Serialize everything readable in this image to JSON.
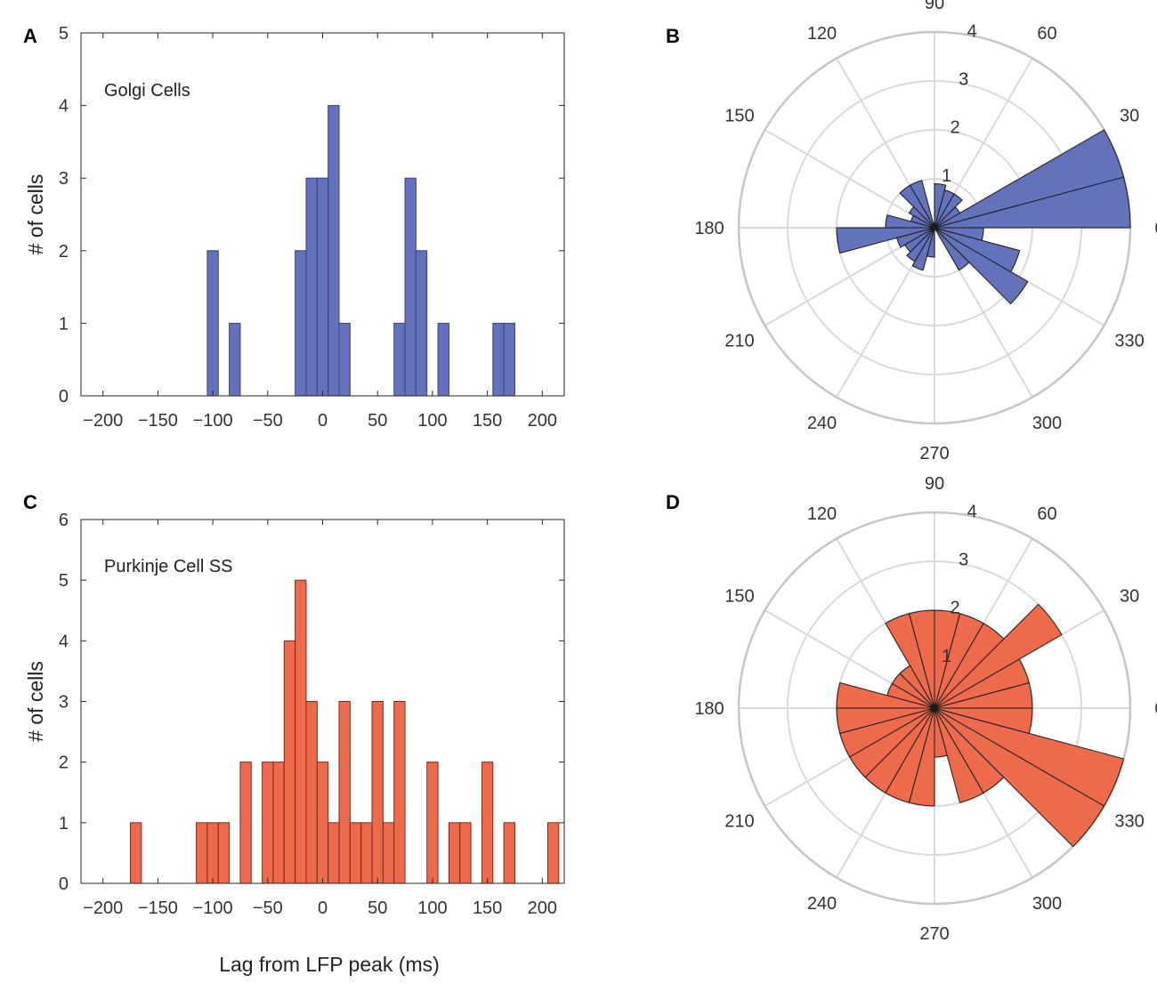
{
  "colors": {
    "blue": "#6472bb",
    "red": "#ee6a4d",
    "stroke_blue": "#3b417a",
    "stroke_red": "#7a2a1c",
    "polar_grid": "#d9d9d9"
  },
  "chart_data": [
    {
      "id": "A",
      "type": "bar",
      "panel_label": "A",
      "annotation": "Golgi Cells",
      "ylabel": "# of cells",
      "xlabel": "",
      "xlim": [
        -220,
        220
      ],
      "ylim": [
        0,
        5
      ],
      "xticks": [
        -200,
        -150,
        -100,
        -50,
        0,
        50,
        100,
        150,
        200
      ],
      "yticks": [
        0,
        1,
        2,
        3,
        4,
        5
      ],
      "bin_width": 10,
      "color": "#6472bb",
      "bin_centers": [
        -100,
        -80,
        -20,
        -10,
        0,
        10,
        20,
        70,
        80,
        90,
        110,
        160,
        170
      ],
      "values": [
        2,
        1,
        2,
        3,
        3,
        4,
        1,
        1,
        3,
        2,
        1,
        1,
        1
      ]
    },
    {
      "id": "C",
      "type": "bar",
      "panel_label": "C",
      "annotation": "Purkinje Cell SS",
      "ylabel": "# of cells",
      "xlabel": "Lag from LFP peak (ms)",
      "xlim": [
        -220,
        220
      ],
      "ylim": [
        0,
        6
      ],
      "xticks": [
        -200,
        -150,
        -100,
        -50,
        0,
        50,
        100,
        150,
        200
      ],
      "yticks": [
        0,
        1,
        2,
        3,
        4,
        5,
        6
      ],
      "bin_width": 10,
      "color": "#ee6a4d",
      "bin_centers": [
        -170,
        -110,
        -100,
        -90,
        -70,
        -50,
        -40,
        -30,
        -20,
        -10,
        0,
        10,
        20,
        30,
        40,
        50,
        60,
        70,
        100,
        120,
        130,
        150,
        170,
        210
      ],
      "values": [
        1,
        1,
        1,
        1,
        2,
        2,
        2,
        4,
        5,
        3,
        2,
        1,
        3,
        1,
        1,
        3,
        1,
        3,
        2,
        1,
        1,
        2,
        1,
        1
      ]
    },
    {
      "id": "B",
      "type": "polar_histogram",
      "panel_label": "B",
      "color": "#6472bb",
      "rlim": [
        0,
        4
      ],
      "r_ticks": [
        1,
        2,
        3,
        4
      ],
      "theta_ticks": [
        0,
        30,
        60,
        90,
        120,
        150,
        180,
        210,
        240,
        270,
        300,
        330
      ],
      "bin_width_deg": 15,
      "bin_starts_deg": [
        0,
        15,
        30,
        45,
        60,
        75,
        90,
        105,
        120,
        135,
        150,
        165,
        180,
        195,
        210,
        225,
        240,
        255,
        270,
        285,
        300,
        315,
        330,
        345
      ],
      "values": [
        4,
        4,
        0.6,
        0.8,
        0.8,
        0.9,
        0.1,
        1.0,
        1.0,
        0.6,
        0.5,
        1.0,
        2.0,
        0.8,
        0.7,
        0.8,
        0.9,
        0.6,
        0,
        0,
        1.0,
        2.2,
        1.8,
        1.0
      ]
    },
    {
      "id": "D",
      "type": "polar_histogram",
      "panel_label": "D",
      "color": "#ee6a4d",
      "rlim": [
        0,
        4
      ],
      "r_ticks": [
        1,
        2,
        3,
        4
      ],
      "theta_ticks": [
        0,
        30,
        60,
        90,
        120,
        150,
        180,
        210,
        240,
        270,
        300,
        330
      ],
      "bin_width_deg": 15,
      "bin_starts_deg": [
        0,
        15,
        30,
        45,
        60,
        75,
        90,
        105,
        120,
        135,
        150,
        165,
        180,
        195,
        210,
        225,
        240,
        255,
        270,
        285,
        300,
        315,
        330,
        345
      ],
      "values": [
        2.0,
        2.0,
        3.0,
        2.0,
        2.0,
        2.0,
        2.0,
        2.0,
        1.0,
        1.0,
        1.0,
        2.0,
        2.0,
        2.0,
        2.0,
        2.0,
        2.0,
        2.0,
        1.0,
        2.0,
        2.0,
        4.0,
        4.0,
        2.0
      ]
    }
  ]
}
